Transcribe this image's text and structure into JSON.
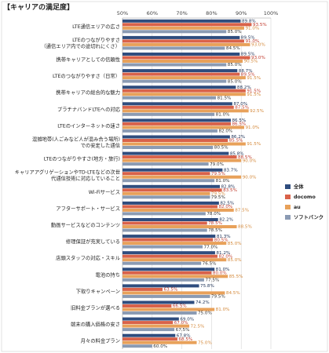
{
  "chart_data": {
    "type": "bar",
    "orientation": "horizontal",
    "title": "【キャリアの満足度】",
    "xlim": [
      50,
      100
    ],
    "ticks": [
      "50%",
      "60%",
      "70%",
      "80%",
      "90%",
      "100%"
    ],
    "grid": true,
    "legend_position": "right",
    "categories": [
      "LTE通信エリアの広さ",
      "LTEのつながりやすさ（通信エリア内での途切れにくさ）",
      "携帯キャリアとしての信頼性",
      "LTEのつながりやすさ（日常）",
      "携帯キャリアの総合的な魅力",
      "プラチナバンドLTEへの対応",
      "LTEのインターネットの速さ",
      "混雑地帯(人ごみなど人が混み合う場所)での安定した通信",
      "LTEのつながりやすさ(地方・旅行)",
      "キャリアアグリゲーションやTD-LTEなどの次世代通信技術に対応していること",
      "Wi-Fiサービス",
      "アフターサポート・サービス",
      "動画サービスなどのコンテンツ",
      "修理保証が充実している",
      "店頭スタッフの対応・スキル",
      "電池の持ち",
      "下取りキャンペーン",
      "旧料金プランが選べる",
      "端末の購入価格の安さ",
      "月々の料金プラン"
    ],
    "category_lines": [
      [
        "LTE通信エリアの広さ"
      ],
      [
        "LTEのつながりやすさ",
        "（通信エリア内での途切れにくさ）"
      ],
      [
        "携帯キャリアとしての信頼性"
      ],
      [
        "LTEのつながりやすさ（日常）"
      ],
      [
        "携帯キャリアの総合的な魅力"
      ],
      [
        "プラチナバンドLTEへの対応"
      ],
      [
        "LTEのインターネットの速さ"
      ],
      [
        "混雑地帯(人ごみなど人が混み合う場所)",
        "での安定した通信"
      ],
      [
        "LTEのつながりやすさ(地方・旅行)"
      ],
      [
        "キャリアアグリゲーションやTD-LTEなどの次世",
        "代通信技術に対応していること"
      ],
      [
        "Wi-Fiサービス"
      ],
      [
        "アフターサポート・サービス"
      ],
      [
        "動画サービスなどのコンテンツ"
      ],
      [
        "修理保証が充実している"
      ],
      [
        "店頭スタッフの対応・スキル"
      ],
      [
        "電池の持ち"
      ],
      [
        "下取りキャンペーン"
      ],
      [
        "旧料金プランが選べる"
      ],
      [
        "端末の購入価格の安さ"
      ],
      [
        "月々の料金プラン"
      ]
    ],
    "series": [
      {
        "name": "全体",
        "color": "#2f4d7e",
        "label_color": "#1a2f55",
        "values": [
          89.8,
          89.5,
          89.5,
          88.7,
          88.2,
          87.0,
          86.5,
          86.2,
          85.8,
          83.7,
          82.8,
          82.5,
          82.2,
          81.3,
          81.2,
          81.0,
          75.8,
          74.2,
          69.0,
          67.8
        ]
      },
      {
        "name": "docomo",
        "color": "#d9624a",
        "label_color": "#c0392b",
        "values": [
          93.5,
          91.0,
          93.0,
          89.5,
          91.5,
          87.5,
          86.5,
          85.5,
          88.5,
          79.5,
          83.5,
          82.0,
          78.5,
          80.5,
          82.0,
          80.0,
          63.5,
          66.5,
          67.0,
          68.5
        ]
      },
      {
        "name": "au",
        "color": "#e8a15a",
        "label_color": "#d4893a",
        "values": [
          91.0,
          93.0,
          90.5,
          91.5,
          91.5,
          92.5,
          91.0,
          91.5,
          90.0,
          90.0,
          79.5,
          87.5,
          88.5,
          85.0,
          85.0,
          85.5,
          84.5,
          81.0,
          72.5,
          75.0
        ]
      },
      {
        "name": "ソフトバンク",
        "color": "#8b9bb3",
        "label_color": "#333333",
        "values": [
          85.0,
          84.5,
          85.0,
          85.0,
          81.5,
          81.0,
          82.0,
          80.5,
          79.0,
          81.0,
          79.5,
          78.0,
          78.5,
          77.0,
          76.5,
          77.5,
          79.5,
          75.0,
          67.5,
          60.0
        ]
      }
    ]
  }
}
